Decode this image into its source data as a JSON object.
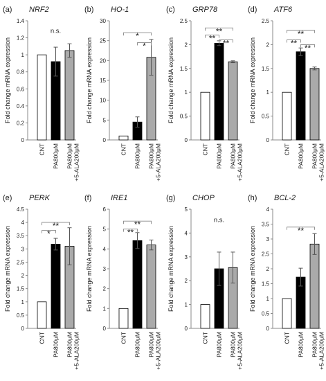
{
  "figure": {
    "ylabel": "Fold change mRNA expression",
    "categories": [
      [
        "CNT"
      ],
      [
        "PA800μM"
      ],
      [
        "PA800μM",
        "+5-ALA200μM"
      ]
    ],
    "colors": {
      "cnt": "#ffffff",
      "pa": "#000000",
      "ala": "#aaaaaa",
      "axis": "#888888",
      "errorbar": "#555555"
    }
  },
  "chart_data": [
    {
      "type": "bar",
      "panel_label": "(a)",
      "gene": "NRF2",
      "ylim": [
        0,
        1.4
      ],
      "yticks": [
        0,
        0.2,
        0.4,
        0.6,
        0.8,
        1,
        1.2,
        1.4
      ],
      "ytick_labels": [
        "0",
        "0.2",
        "0.4",
        "0.6",
        "0.8",
        "1",
        "1.2",
        "1.4"
      ],
      "values": [
        1.0,
        0.92,
        1.05
      ],
      "errors": [
        0,
        0.17,
        0.08
      ],
      "annotations": [
        {
          "type": "text",
          "text": "n.s.",
          "y": 1.28
        }
      ]
    },
    {
      "type": "bar",
      "panel_label": "(b)",
      "gene": "HO-1",
      "ylim": [
        0,
        30
      ],
      "yticks": [
        0,
        5,
        10,
        15,
        20,
        25,
        30
      ],
      "ytick_labels": [
        "0",
        "5",
        "10",
        "15",
        "20",
        "25",
        "30"
      ],
      "values": [
        1.0,
        4.5,
        20.8
      ],
      "errors": [
        0,
        1.3,
        4.5
      ],
      "annotations": [
        {
          "type": "bracket",
          "from": 0,
          "to": 2,
          "y": 27,
          "label": "*"
        },
        {
          "type": "bracket",
          "from": 1,
          "to": 2,
          "y": 24.5,
          "label": "*"
        }
      ]
    },
    {
      "type": "bar",
      "panel_label": "(c)",
      "gene": "GRP78",
      "ylim": [
        0,
        2.5
      ],
      "yticks": [
        0,
        0.5,
        1,
        1.5,
        2,
        2.5
      ],
      "ytick_labels": [
        "0",
        "0.5",
        "1",
        "1.5",
        "2",
        "2.5"
      ],
      "values": [
        1.0,
        2.03,
        1.64
      ],
      "errors": [
        0,
        0.05,
        0.02
      ],
      "annotations": [
        {
          "type": "bracket",
          "from": 0,
          "to": 1,
          "y": 2.2,
          "label": "**"
        },
        {
          "type": "bracket",
          "from": 0,
          "to": 2,
          "y": 2.35,
          "label": "**"
        },
        {
          "type": "bracket",
          "from": 1,
          "to": 2,
          "y": 2.1,
          "label": "**"
        }
      ]
    },
    {
      "type": "bar",
      "panel_label": "(d)",
      "gene": "ATF6",
      "ylim": [
        0,
        2.5
      ],
      "yticks": [
        0,
        0.5,
        1,
        1.5,
        2,
        2.5
      ],
      "ytick_labels": [
        "0",
        "0.5",
        "1",
        "1.5",
        "2",
        "2.5"
      ],
      "values": [
        1.0,
        1.85,
        1.5
      ],
      "errors": [
        0,
        0.08,
        0.03
      ],
      "annotations": [
        {
          "type": "bracket",
          "from": 0,
          "to": 1,
          "y": 2.1,
          "label": "**"
        },
        {
          "type": "bracket",
          "from": 0,
          "to": 2,
          "y": 2.3,
          "label": "**"
        },
        {
          "type": "bracket",
          "from": 1,
          "to": 2,
          "y": 2.0,
          "label": "**"
        }
      ]
    },
    {
      "type": "bar",
      "panel_label": "(e)",
      "gene": "PERK",
      "ylim": [
        0,
        4.5
      ],
      "yticks": [
        0,
        0.5,
        1,
        1.5,
        2,
        2.5,
        3,
        3.5,
        4,
        4.5
      ],
      "ytick_labels": [
        "0",
        "0.5",
        "1",
        "1.5",
        "2",
        "2.5",
        "3",
        "3.5",
        "4",
        "4.5"
      ],
      "values": [
        1.0,
        3.18,
        3.1
      ],
      "errors": [
        0,
        0.22,
        0.7
      ],
      "annotations": [
        {
          "type": "bracket",
          "from": 0,
          "to": 1,
          "y": 3.7,
          "label": "*"
        },
        {
          "type": "bracket",
          "from": 0,
          "to": 2,
          "y": 4.0,
          "label": "**"
        }
      ]
    },
    {
      "type": "bar",
      "panel_label": "(f)",
      "gene": "IRE1",
      "ylim": [
        0,
        6
      ],
      "yticks": [
        0,
        1,
        2,
        3,
        4,
        5,
        6
      ],
      "ytick_labels": [
        "0",
        "1",
        "2",
        "3",
        "4",
        "5",
        "6"
      ],
      "values": [
        1.0,
        4.42,
        4.2
      ],
      "errors": [
        0,
        0.4,
        0.25
      ],
      "annotations": [
        {
          "type": "bracket",
          "from": 0,
          "to": 1,
          "y": 5.0,
          "label": "**"
        },
        {
          "type": "bracket",
          "from": 0,
          "to": 2,
          "y": 5.4,
          "label": "**"
        }
      ]
    },
    {
      "type": "bar",
      "panel_label": "(g)",
      "gene": "CHOP",
      "ylim": [
        0,
        5
      ],
      "yticks": [
        0,
        1,
        2,
        3,
        4,
        5
      ],
      "ytick_labels": [
        "0",
        "1",
        "2",
        "3",
        "4",
        "5"
      ],
      "values": [
        1.0,
        2.5,
        2.55
      ],
      "errors": [
        0,
        0.7,
        0.65
      ],
      "annotations": [
        {
          "type": "text",
          "text": "n.s.",
          "y": 4.55
        }
      ]
    },
    {
      "type": "bar",
      "panel_label": "(h)",
      "gene": "BCL-2",
      "ylim": [
        0,
        4
      ],
      "yticks": [
        0,
        0.5,
        1,
        1.5,
        2,
        2.5,
        3,
        3.5,
        4
      ],
      "ytick_labels": [
        "0",
        "0.5",
        "1",
        "1.5",
        "2",
        "2.5",
        "3",
        "3.5",
        "4"
      ],
      "values": [
        1.0,
        1.72,
        2.83
      ],
      "errors": [
        0,
        0.3,
        0.35
      ],
      "annotations": [
        {
          "type": "bracket",
          "from": 0,
          "to": 2,
          "y": 3.4,
          "label": "**"
        }
      ]
    }
  ]
}
